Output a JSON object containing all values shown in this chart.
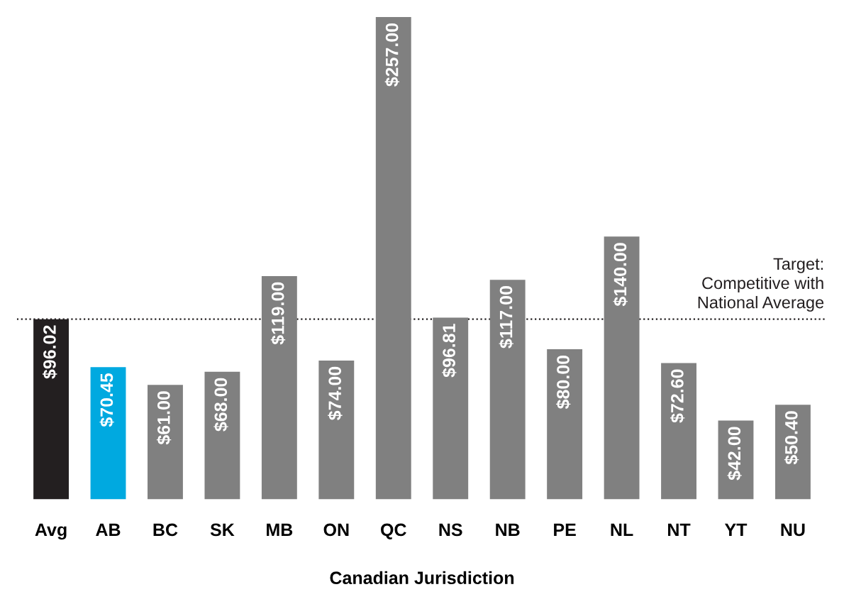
{
  "chart_data": {
    "type": "bar",
    "xlabel": "Canadian Jurisdiction",
    "categories": [
      "Avg",
      "AB",
      "BC",
      "SK",
      "MB",
      "ON",
      "QC",
      "NS",
      "NB",
      "PE",
      "NL",
      "NT",
      "YT",
      "NU"
    ],
    "values": [
      96.02,
      70.45,
      61.0,
      68.0,
      119.0,
      74.0,
      257.0,
      96.81,
      117.0,
      80.0,
      140.0,
      72.6,
      42.0,
      50.4
    ],
    "colors": [
      "#231f20",
      "#00a9e0",
      "#808080",
      "#808080",
      "#808080",
      "#808080",
      "#808080",
      "#808080",
      "#808080",
      "#808080",
      "#808080",
      "#808080",
      "#808080",
      "#808080"
    ],
    "value_labels": [
      "$96.02",
      "$70.45",
      "$61.00",
      "$68.00",
      "$119.00",
      "$74.00",
      "$257.00",
      "$96.81",
      "$117.00",
      "$80.00",
      "$140.00",
      "$72.60",
      "$42.00",
      "$50.40"
    ],
    "ref_lines": [
      {
        "axis": "y",
        "value": 96.02,
        "label": "Target:\nCompetitive with\nNational Average",
        "color": "#231f20",
        "line_style": "dotted"
      }
    ],
    "tick_labels": "x",
    "grid": false
  }
}
